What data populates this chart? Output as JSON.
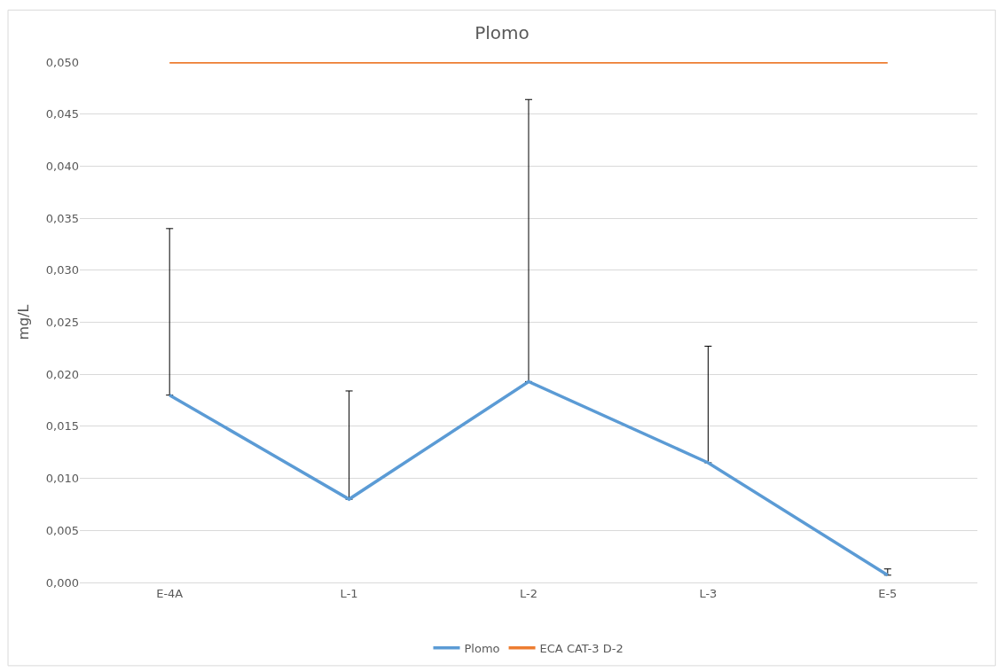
{
  "chart_data": {
    "type": "line",
    "title": "Plomo",
    "ylabel": "mg/L",
    "categories": [
      "E-4A",
      "L-1",
      "L-2",
      "L-3",
      "E-5"
    ],
    "series": [
      {
        "name": "Plomo",
        "color": "#5b9bd5",
        "values": [
          0.018,
          0.008,
          0.0193,
          0.0115,
          0.0007
        ],
        "errors": [
          [
            0.018,
            0.034
          ],
          [
            0.008,
            0.0184
          ],
          [
            0.0193,
            0.0464
          ],
          [
            0.0115,
            0.0227
          ],
          [
            0.0007,
            0.0013
          ]
        ]
      },
      {
        "name": "ECA CAT-3 D-2",
        "color": "#ed7d31",
        "values": [
          0.05,
          0.05,
          0.05,
          0.05,
          0.05
        ]
      }
    ],
    "ylim": [
      0,
      0.05
    ],
    "yticks": [
      {
        "value": 0,
        "label": "0,000"
      },
      {
        "value": 0.005,
        "label": "0,005"
      },
      {
        "value": 0.01,
        "label": "0,010"
      },
      {
        "value": 0.015,
        "label": "0,015"
      },
      {
        "value": 0.02,
        "label": "0,020"
      },
      {
        "value": 0.025,
        "label": "0,025"
      },
      {
        "value": 0.03,
        "label": "0,030"
      },
      {
        "value": 0.035,
        "label": "0,035"
      },
      {
        "value": 0.04,
        "label": "0,040"
      },
      {
        "value": 0.045,
        "label": "0,045"
      },
      {
        "value": 0.05,
        "label": "0,050"
      }
    ],
    "grid": "y",
    "legend": "bottom",
    "marker": "none",
    "line_style": "solid"
  }
}
